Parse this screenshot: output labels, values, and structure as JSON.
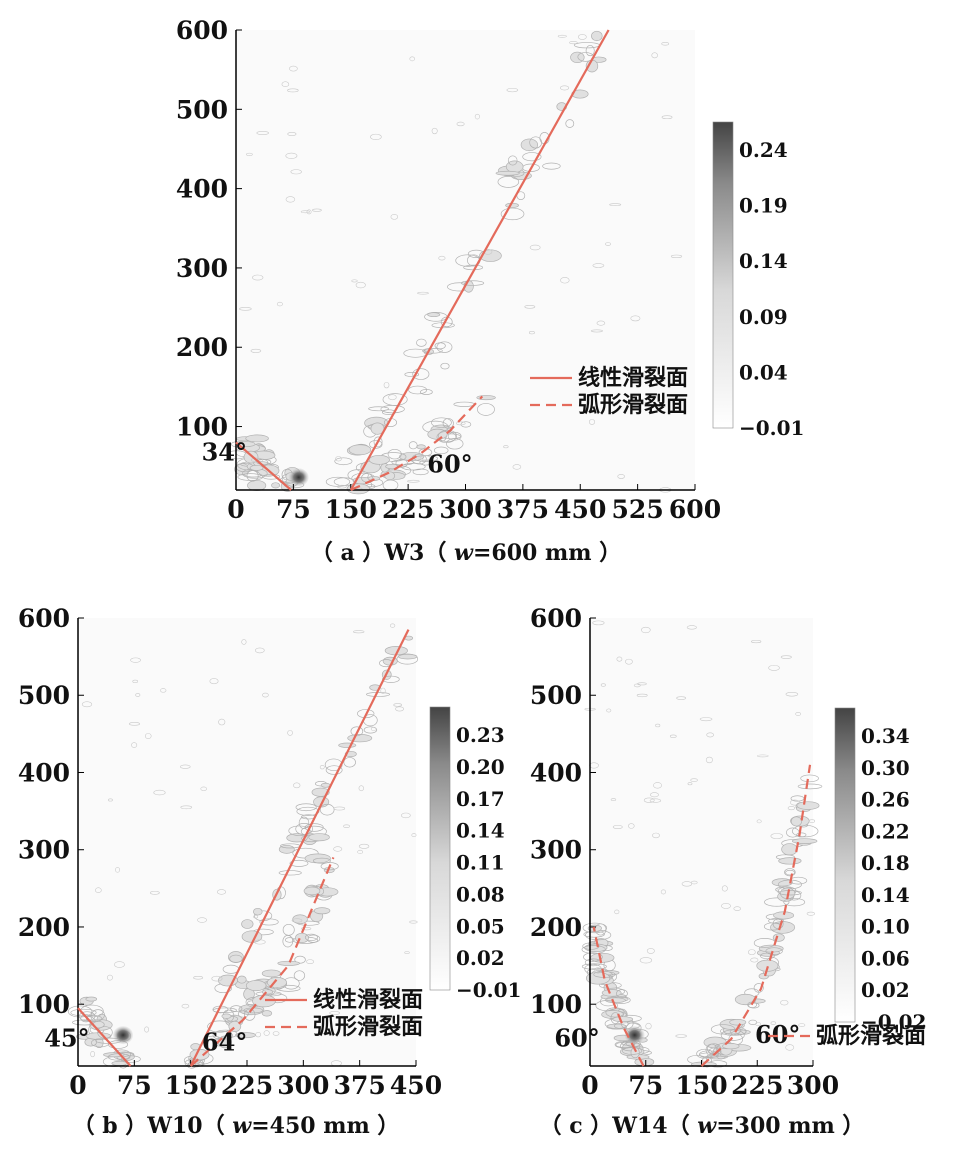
{
  "legend": {
    "linear": "线性滑裂面",
    "arc": "弧形滑裂面"
  },
  "colors": {
    "line": "#e46a5b",
    "contour": "#aaaaaa",
    "cbar_dark": "#444444",
    "cbar_light": "#ffffff"
  },
  "chart_data": [
    {
      "id": "a",
      "type": "heatmap",
      "caption": {
        "prefix": "（ a ）W3（ ",
        "var": "w",
        "suffix": "=600 mm ）"
      },
      "xticks": [
        0,
        75,
        150,
        225,
        300,
        375,
        450,
        525,
        600
      ],
      "yticks": [
        100,
        200,
        300,
        400,
        500,
        600
      ],
      "xlim": [
        0,
        600
      ],
      "ylim": [
        20,
        600
      ],
      "colorbar": [
        "0.24",
        "0.19",
        "0.14",
        "0.09",
        "0.04",
        "−0.01"
      ],
      "lines": [
        {
          "kind": "linear",
          "points": [
            [
              150,
              20
            ],
            [
              487,
              600
            ]
          ]
        },
        {
          "kind": "linear",
          "points": [
            [
              0,
              80
            ],
            [
              72,
              20
            ]
          ]
        },
        {
          "kind": "arc",
          "points": [
            [
              150,
              20
            ],
            [
              200,
              42
            ],
            [
              240,
              65
            ],
            [
              280,
              95
            ],
            [
              322,
              138
            ]
          ]
        }
      ],
      "angles": [
        {
          "label": "34°",
          "at": [
            -45,
            57
          ]
        },
        {
          "label": "60°",
          "at": [
            250,
            42
          ]
        }
      ],
      "legend_items": [
        "linear",
        "arc"
      ]
    },
    {
      "id": "b",
      "type": "heatmap",
      "caption": {
        "prefix": "（ b ）W10（ ",
        "var": "w",
        "suffix": "=450 mm ）"
      },
      "xticks": [
        0,
        75,
        150,
        225,
        300,
        375,
        450
      ],
      "yticks": [
        100,
        200,
        300,
        400,
        500,
        600
      ],
      "xlim": [
        0,
        450
      ],
      "ylim": [
        20,
        600
      ],
      "colorbar": [
        "0.23",
        "0.20",
        "0.17",
        "0.14",
        "0.11",
        "0.08",
        "0.05",
        "0.02",
        "−0.01"
      ],
      "lines": [
        {
          "kind": "linear",
          "points": [
            [
              150,
              20
            ],
            [
              440,
              585
            ]
          ]
        },
        {
          "kind": "linear",
          "points": [
            [
              0,
              95
            ],
            [
              70,
              20
            ]
          ]
        },
        {
          "kind": "arc",
          "points": [
            [
              150,
              20
            ],
            [
              220,
              80
            ],
            [
              280,
              150
            ],
            [
              340,
              290
            ]
          ]
        }
      ],
      "angles": [
        {
          "label": "45°",
          "at": [
            -45,
            45
          ]
        },
        {
          "label": "64°",
          "at": [
            165,
            40
          ]
        }
      ],
      "legend_items": [
        "linear",
        "arc"
      ]
    },
    {
      "id": "c",
      "type": "heatmap",
      "caption": {
        "prefix": "（ c ）W14（ ",
        "var": "w",
        "suffix": "=300 mm ）"
      },
      "xticks": [
        0,
        75,
        150,
        225,
        300
      ],
      "yticks": [
        100,
        200,
        300,
        400,
        500,
        600
      ],
      "xlim": [
        0,
        300
      ],
      "ylim": [
        20,
        600
      ],
      "colorbar": [
        "0.34",
        "0.30",
        "0.26",
        "0.22",
        "0.18",
        "0.14",
        "0.10",
        "0.06",
        "0.02",
        "−0.02"
      ],
      "lines": [
        {
          "kind": "arc",
          "points": [
            [
              150,
              20
            ],
            [
              190,
              55
            ],
            [
              230,
              120
            ],
            [
              262,
              220
            ],
            [
              282,
              320
            ],
            [
              296,
              410
            ]
          ]
        },
        {
          "kind": "arc",
          "points": [
            [
              72,
              20
            ],
            [
              45,
              70
            ],
            [
              20,
              130
            ],
            [
              5,
              200
            ]
          ]
        }
      ],
      "angles": [
        {
          "label": "60°",
          "at": [
            -48,
            45
          ]
        },
        {
          "label": "60°",
          "at": [
            222,
            50
          ]
        }
      ],
      "legend_items": [
        "arc"
      ]
    }
  ]
}
